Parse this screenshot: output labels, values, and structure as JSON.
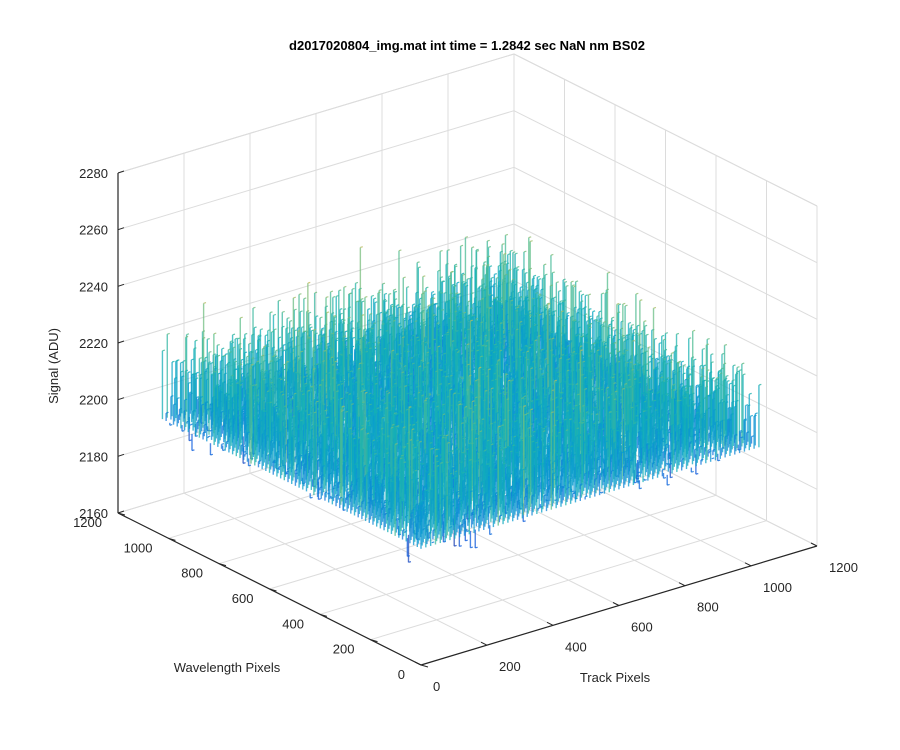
{
  "chart_data": {
    "type": "surface",
    "title": "d2017020804_img.mat int time = 1.2842 sec  NaN nm BS02",
    "xlabel": "Track Pixels",
    "ylabel": "Wavelength Pixels",
    "zlabel": "Signal (ADU)",
    "xlim": [
      0,
      1200
    ],
    "ylim": [
      0,
      1200
    ],
    "zlim": [
      2160,
      2280
    ],
    "x_ticks": [
      0,
      200,
      400,
      600,
      800,
      1000,
      1200
    ],
    "y_ticks": [
      0,
      200,
      400,
      600,
      800,
      1000,
      1200
    ],
    "z_ticks": [
      2160,
      2180,
      2200,
      2220,
      2240,
      2260,
      2280
    ],
    "x_tick_labels": [
      "0",
      "200",
      "400",
      "600",
      "800",
      "1000",
      "1200"
    ],
    "y_tick_labels": [
      "0",
      "200",
      "400",
      "600",
      "800",
      "1000",
      "1200"
    ],
    "z_tick_labels": [
      "2160",
      "2180",
      "2200",
      "2220",
      "2240",
      "2260",
      "2280"
    ],
    "data_extent": {
      "x": [
        0,
        1024
      ],
      "y": [
        0,
        1024
      ]
    },
    "signal_mean": 2215,
    "signal_range": [
      2170,
      2270
    ],
    "grid": true,
    "colormap": "parula",
    "colors": {
      "low": "#0072BD",
      "mid": "#21B18F",
      "high": "#E6C431",
      "axis": "#262626",
      "grid": "#DCDCDC"
    }
  }
}
